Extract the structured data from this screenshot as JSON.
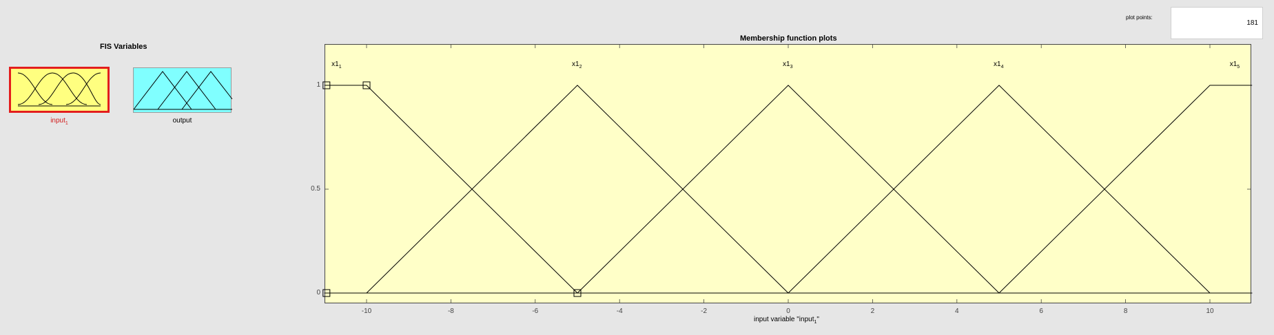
{
  "fis_variables": {
    "title": "FIS Variables",
    "input": {
      "label": "input",
      "subscript": "1"
    },
    "output": {
      "label": "output"
    }
  },
  "plot_points": {
    "label": "plot points:",
    "value": "181"
  },
  "plot": {
    "title": "Membership function plots",
    "xlabel_pre": "input variable \"input",
    "xlabel_sub": "1",
    "xlabel_post": "\"",
    "xticks": [
      "-10",
      "-8",
      "-6",
      "-4",
      "-2",
      "0",
      "2",
      "4",
      "6",
      "8",
      "10"
    ],
    "yticks": [
      "0",
      "0.5",
      "1"
    ],
    "mf_labels": [
      {
        "name": "x1",
        "sub": "1"
      },
      {
        "name": "x1",
        "sub": "2"
      },
      {
        "name": "x1",
        "sub": "3"
      },
      {
        "name": "x1",
        "sub": "4"
      },
      {
        "name": "x1",
        "sub": "5"
      }
    ]
  },
  "chart_data": {
    "type": "line",
    "title": "Membership function plots",
    "xlabel": "input variable \"input1\"",
    "ylabel": "",
    "xlim": [
      -11,
      11
    ],
    "ylim": [
      0,
      1.2
    ],
    "series": [
      {
        "name": "x1_1",
        "x": [
          -11,
          -10,
          -5,
          11
        ],
        "values": [
          1,
          1,
          0,
          0
        ]
      },
      {
        "name": "x1_2",
        "x": [
          -11,
          -10,
          -5,
          0,
          11
        ],
        "values": [
          0,
          0,
          1,
          0,
          0
        ]
      },
      {
        "name": "x1_3",
        "x": [
          -11,
          -5,
          0,
          5,
          11
        ],
        "values": [
          0,
          0,
          1,
          0,
          0
        ]
      },
      {
        "name": "x1_4",
        "x": [
          -11,
          0,
          5,
          10,
          11
        ],
        "values": [
          0,
          0,
          1,
          0,
          0
        ]
      },
      {
        "name": "x1_5",
        "x": [
          -11,
          5,
          10,
          11
        ],
        "values": [
          0,
          0,
          1,
          1
        ]
      }
    ],
    "selected_series": "x1_1",
    "colors": {
      "axes_bg": "#ffffc8",
      "line": "#000000",
      "input_box": "#ffff80",
      "output_box": "#80ffff",
      "selected_border": "#e31d1d"
    }
  }
}
